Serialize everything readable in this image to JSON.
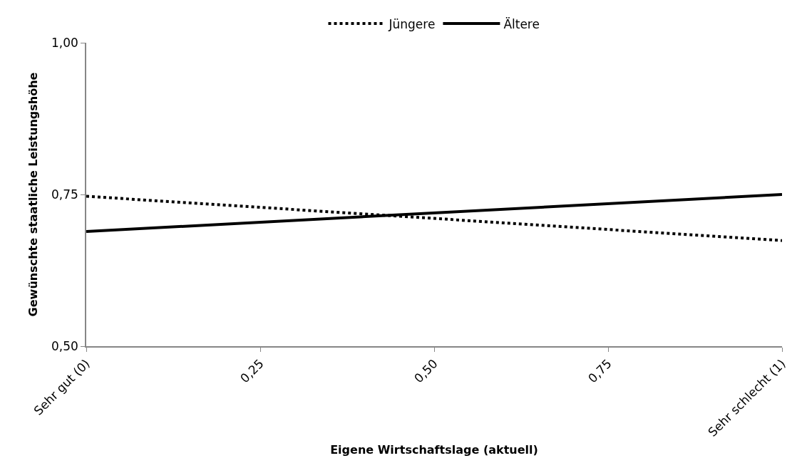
{
  "chart_data": {
    "type": "line",
    "xlabel": "Eigene Wirtschaftslage (aktuell)",
    "ylabel": "Gewünschte staatliche Leistungshöhe",
    "x": [
      0,
      1
    ],
    "series": [
      {
        "name": "Jüngere",
        "color": "#000000",
        "values": [
          0.747,
          0.674
        ],
        "line_style": "dotted"
      },
      {
        "name": "Ältere",
        "color": "#000000",
        "values": [
          0.689,
          0.75
        ],
        "line_style": "solid"
      }
    ],
    "xlim": [
      0,
      1
    ],
    "xticks": [
      {
        "value": 0,
        "label": "Sehr gut (0)"
      },
      {
        "value": 0.25,
        "label": "0,25"
      },
      {
        "value": 0.5,
        "label": "0,50"
      },
      {
        "value": 0.75,
        "label": "0,75"
      },
      {
        "value": 1,
        "label": "Sehr schlecht (1)"
      }
    ],
    "ylim": [
      0.5,
      1.0
    ],
    "yticks": [
      {
        "value": 0.5,
        "label": "0,50"
      },
      {
        "value": 0.75,
        "label": "0,75"
      },
      {
        "value": 1.0,
        "label": "1,00"
      }
    ],
    "grid": false,
    "legend": "top",
    "marker": "none"
  }
}
